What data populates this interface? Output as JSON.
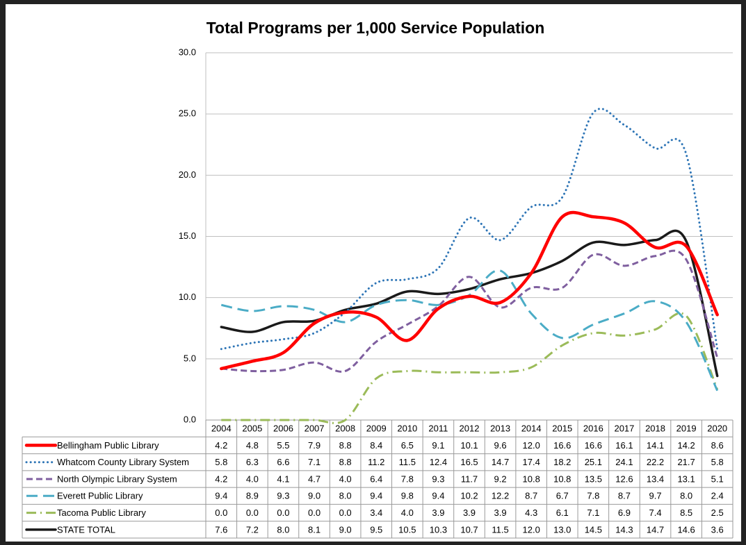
{
  "chart_data": {
    "type": "line",
    "title": "Total Programs per 1,000 Service Population",
    "categories": [
      "2004",
      "2005",
      "2006",
      "2007",
      "2008",
      "2009",
      "2010",
      "2011",
      "2012",
      "2013",
      "2014",
      "2015",
      "2016",
      "2017",
      "2018",
      "2019",
      "2020"
    ],
    "ylim": [
      0,
      30
    ],
    "yticks": [
      {
        "value": 0,
        "label": "0.0"
      },
      {
        "value": 5,
        "label": "5.0"
      },
      {
        "value": 10,
        "label": "10.0"
      },
      {
        "value": 15,
        "label": "15.0"
      },
      {
        "value": 20,
        "label": "20.0"
      },
      {
        "value": 25,
        "label": "25.0"
      },
      {
        "value": 30,
        "label": "30.0"
      }
    ],
    "grid": true,
    "smooth": true,
    "series": [
      {
        "name": "Bellingham Public Library",
        "color": "#ff0000",
        "line_style": "solid-thick",
        "values": [
          4.2,
          4.8,
          5.5,
          7.9,
          8.8,
          8.4,
          6.5,
          9.1,
          10.1,
          9.6,
          12.0,
          16.6,
          16.6,
          16.1,
          14.1,
          14.2,
          8.6
        ],
        "value_labels": [
          "4.2",
          "4.8",
          "5.5",
          "7.9",
          "8.8",
          "8.4",
          "6.5",
          "9.1",
          "10.1",
          "9.6",
          "12.0",
          "16.6",
          "16.6",
          "16.1",
          "14.1",
          "14.2",
          "8.6"
        ]
      },
      {
        "name": "Whatcom County Library System",
        "color": "#2e75b6",
        "line_style": "dotted",
        "values": [
          5.8,
          6.3,
          6.6,
          7.1,
          8.8,
          11.2,
          11.5,
          12.4,
          16.5,
          14.7,
          17.4,
          18.2,
          25.1,
          24.1,
          22.2,
          21.7,
          5.8
        ],
        "value_labels": [
          "5.8",
          "6.3",
          "6.6",
          "7.1",
          "8.8",
          "11.2",
          "11.5",
          "12.4",
          "16.5",
          "14.7",
          "17.4",
          "18.2",
          "25.1",
          "24.1",
          "22.2",
          "21.7",
          "5.8"
        ]
      },
      {
        "name": "North Olympic Library System",
        "color": "#7f5f9f",
        "line_style": "dashed",
        "values": [
          4.2,
          4.0,
          4.1,
          4.7,
          4.0,
          6.4,
          7.8,
          9.3,
          11.7,
          9.2,
          10.8,
          10.8,
          13.5,
          12.6,
          13.4,
          13.1,
          5.1
        ],
        "value_labels": [
          "4.2",
          "4.0",
          "4.1",
          "4.7",
          "4.0",
          "6.4",
          "7.8",
          "9.3",
          "11.7",
          "9.2",
          "10.8",
          "10.8",
          "13.5",
          "12.6",
          "13.4",
          "13.1",
          "5.1"
        ]
      },
      {
        "name": "Everett Public Library",
        "color": "#4bacc6",
        "line_style": "long-dash",
        "values": [
          9.4,
          8.9,
          9.3,
          9.0,
          8.0,
          9.4,
          9.8,
          9.4,
          10.2,
          12.2,
          8.7,
          6.7,
          7.8,
          8.7,
          9.7,
          8.0,
          2.4
        ],
        "value_labels": [
          "9.4",
          "8.9",
          "9.3",
          "9.0",
          "8.0",
          "9.4",
          "9.8",
          "9.4",
          "10.2",
          "12.2",
          "8.7",
          "6.7",
          "7.8",
          "8.7",
          "9.7",
          "8.0",
          "2.4"
        ]
      },
      {
        "name": "Tacoma Public Library",
        "color": "#9bbb59",
        "line_style": "dash-dot",
        "values": [
          0.0,
          0.0,
          0.0,
          0.0,
          0.0,
          3.4,
          4.0,
          3.9,
          3.9,
          3.9,
          4.3,
          6.1,
          7.1,
          6.9,
          7.4,
          8.5,
          2.5
        ],
        "value_labels": [
          "0.0",
          "0.0",
          "0.0",
          "0.0",
          "0.0",
          "3.4",
          "4.0",
          "3.9",
          "3.9",
          "3.9",
          "4.3",
          "6.1",
          "7.1",
          "6.9",
          "7.4",
          "8.5",
          "2.5"
        ]
      },
      {
        "name": "STATE TOTAL",
        "color": "#1a1a1a",
        "line_style": "solid",
        "values": [
          7.6,
          7.2,
          8.0,
          8.1,
          9.0,
          9.5,
          10.5,
          10.3,
          10.7,
          11.5,
          12.0,
          13.0,
          14.5,
          14.3,
          14.7,
          14.6,
          3.6
        ],
        "value_labels": [
          "7.6",
          "7.2",
          "8.0",
          "8.1",
          "9.0",
          "9.5",
          "10.5",
          "10.3",
          "10.7",
          "11.5",
          "12.0",
          "13.0",
          "14.5",
          "14.3",
          "14.7",
          "14.6",
          "3.6"
        ]
      }
    ]
  }
}
